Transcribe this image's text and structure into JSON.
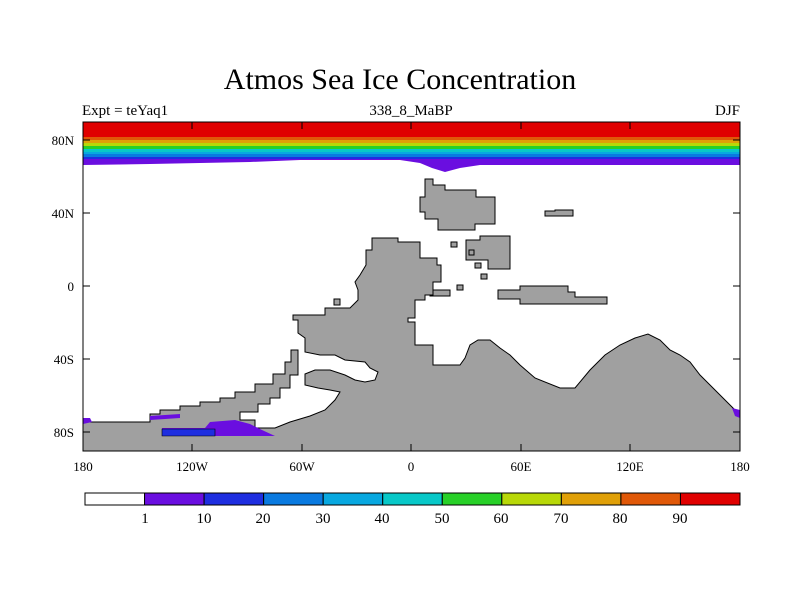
{
  "title": "Atmos Sea Ice Concentration",
  "subtitle_left": "Expt = teYaq1",
  "subtitle_center": "338_8_MaBP",
  "subtitle_right": "DJF",
  "colors": {
    "land": "#a0a0a0",
    "levels": [
      "#ffffff",
      "#6a0ee0",
      "#1e2ee0",
      "#0a7ae0",
      "#08a8e0",
      "#08c8c8",
      "#28d028",
      "#b8d808",
      "#e0a008",
      "#e05808",
      "#e00000"
    ]
  },
  "lat_ticks": [
    "80N",
    "40N",
    "0",
    "40S",
    "80S"
  ],
  "lon_ticks": [
    "180",
    "120W",
    "60W",
    "0",
    "60E",
    "120E",
    "180"
  ],
  "colorbar_labels": [
    "1",
    "10",
    "20",
    "30",
    "40",
    "50",
    "60",
    "70",
    "80",
    "90"
  ]
}
